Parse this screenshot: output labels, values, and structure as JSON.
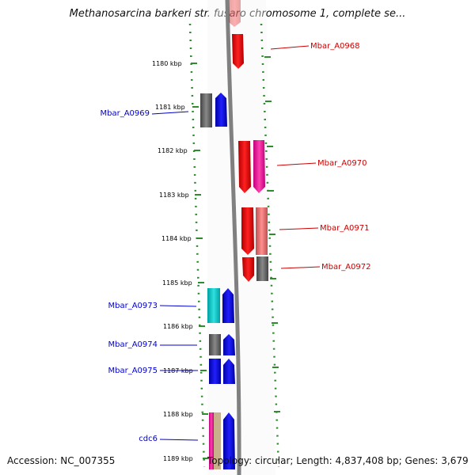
{
  "title": "Methanosarcina barkeri str. fusaro chromosome 1, complete se...",
  "footer": {
    "accession": "Accession: NC_007355",
    "topology": "Topology: circular; Length: 4,837,408 bp; Genes: 3,679"
  },
  "ticks": [
    "1180 kbp",
    "1181 kbp",
    "1182 kbp",
    "1183 kbp",
    "1184 kbp",
    "1185 kbp",
    "1186 kbp",
    "1187 kbp",
    "1188 kbp",
    "1189 kbp"
  ],
  "gene_labels": {
    "left": [
      "Mbar_A0969",
      "Mbar_A0973",
      "Mbar_A0974",
      "Mbar_A0975",
      "cdc6"
    ],
    "right": [
      "Mbar_A0968",
      "Mbar_A0970",
      "Mbar_A0971",
      "Mbar_A0972"
    ]
  },
  "colors": {
    "forward_strand": "#0000ff",
    "reverse_strand": "#ff0000",
    "backbone": "#808080",
    "tick_dots": "#2e8b2e",
    "label_left": "#0000cc",
    "label_right": "#cc0000"
  }
}
